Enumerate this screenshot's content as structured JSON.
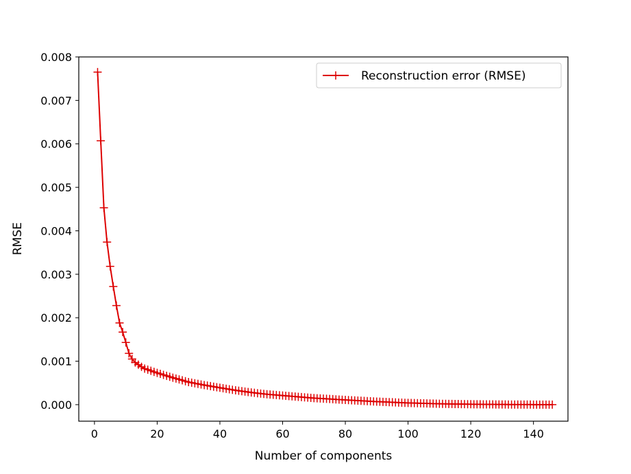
{
  "chart_data": {
    "type": "line",
    "xlabel": "Number of components",
    "ylabel": "RMSE",
    "xlim": [
      -5,
      151
    ],
    "ylim": [
      -0.00038,
      0.008
    ],
    "xticks": [
      0,
      20,
      40,
      60,
      80,
      100,
      120,
      140
    ],
    "yticks": [
      0.0,
      0.001,
      0.002,
      0.003,
      0.004,
      0.005,
      0.006,
      0.007,
      0.008
    ],
    "ytick_decimals": 3,
    "grid": false,
    "legend_position": "top-right",
    "series": [
      {
        "name": "Reconstruction error (RMSE)",
        "color": "#dd0000",
        "marker": "plus",
        "x_start": 1,
        "x_end": 146,
        "key_points": [
          [
            1,
            0.00765
          ],
          [
            2,
            0.00607
          ],
          [
            3,
            0.00453
          ],
          [
            4,
            0.00374
          ],
          [
            5,
            0.00318
          ],
          [
            6,
            0.00272
          ],
          [
            7,
            0.00228
          ],
          [
            8,
            0.00188
          ],
          [
            9,
            0.00167
          ],
          [
            10,
            0.00143
          ],
          [
            11,
            0.00118
          ],
          [
            12,
            0.00105
          ],
          [
            13,
            0.00097
          ],
          [
            14,
            0.00092
          ],
          [
            15,
            0.00087
          ],
          [
            16,
            0.00083
          ],
          [
            18,
            0.00078
          ],
          [
            20,
            0.00073
          ],
          [
            25,
            0.00062
          ],
          [
            30,
            0.00052
          ],
          [
            35,
            0.00045
          ],
          [
            40,
            0.00039
          ],
          [
            45,
            0.00033
          ],
          [
            50,
            0.00028
          ],
          [
            55,
            0.00024
          ],
          [
            60,
            0.00021
          ],
          [
            70,
            0.00015
          ],
          [
            80,
            0.00011
          ],
          [
            90,
            7e-05
          ],
          [
            100,
            4e-05
          ],
          [
            110,
            2e-05
          ],
          [
            120,
            1e-05
          ],
          [
            130,
            4e-06
          ],
          [
            146,
            0.0
          ]
        ]
      }
    ]
  }
}
